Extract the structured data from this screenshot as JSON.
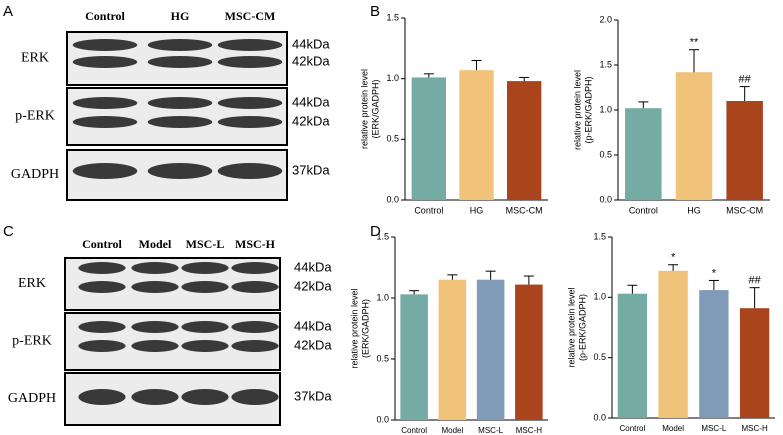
{
  "panel_labels": [
    "A",
    "B",
    "C",
    "D"
  ],
  "blots": [
    {
      "lanes": [
        "Control",
        "HG",
        "MSC-CM"
      ],
      "rows": [
        {
          "label": "ERK",
          "kda": [
            "44kDa",
            "42kDa"
          ]
        },
        {
          "label": "p-ERK",
          "kda": [
            "44kDa",
            "42kDa"
          ]
        },
        {
          "label": "GADPH",
          "kda": [
            "37kDa"
          ]
        }
      ]
    },
    {
      "lanes": [
        "Control",
        "Model",
        "MSC-L",
        "MSC-H"
      ],
      "rows": [
        {
          "label": "ERK",
          "kda": [
            "44kDa",
            "42kDa"
          ]
        },
        {
          "label": "p-ERK",
          "kda": [
            "44kDa",
            "42kDa"
          ]
        },
        {
          "label": "GADPH",
          "kda": [
            "37kDa"
          ]
        }
      ]
    }
  ],
  "chart_data": [
    {
      "type": "bar",
      "ylabel": [
        "relative protein level",
        "(ERK/GADPH)"
      ],
      "categories": [
        "Control",
        "HG",
        "MSC-CM"
      ],
      "values": [
        1.01,
        1.07,
        0.98
      ],
      "errors": [
        0.03,
        0.08,
        0.03
      ],
      "colors": [
        "#74aba5",
        "#f0c27a",
        "#a9441c"
      ],
      "annotations": [
        null,
        null,
        null
      ],
      "ylim": [
        0,
        1.5
      ],
      "yticks": [
        {
          "value": 0,
          "label": "0.0"
        },
        0.5,
        {
          "value": 1,
          "label": "1.0"
        },
        1.5
      ]
    },
    {
      "type": "bar",
      "ylabel": [
        "relative protein level",
        "(p-ERK/GADPH)"
      ],
      "categories": [
        "Control",
        "HG",
        "MSC-CM"
      ],
      "values": [
        1.02,
        1.42,
        1.1
      ],
      "errors": [
        0.07,
        0.25,
        0.16
      ],
      "colors": [
        "#74aba5",
        "#f0c27a",
        "#a9441c"
      ],
      "annotations": [
        null,
        "**",
        "##"
      ],
      "ylim": [
        0,
        2
      ],
      "yticks": [
        {
          "value": 0,
          "label": "0.0"
        },
        0.5,
        {
          "value": 1,
          "label": "1.0"
        },
        1.5,
        {
          "value": 2,
          "label": "2.0"
        }
      ]
    },
    {
      "type": "bar",
      "ylabel": [
        "relative protein level",
        "(ERK/GADPH)"
      ],
      "categories": [
        "Control",
        "Model",
        "MSC-L",
        "MSC-H"
      ],
      "values": [
        1.03,
        1.15,
        1.15,
        1.11
      ],
      "errors": [
        0.03,
        0.04,
        0.07,
        0.07
      ],
      "colors": [
        "#74aba5",
        "#f0c27a",
        "#7f9bb8",
        "#a9441c"
      ],
      "annotations": [
        null,
        null,
        null,
        null
      ],
      "ylim": [
        0,
        1.5
      ],
      "yticks": [
        {
          "value": 0,
          "label": "0.0"
        },
        0.5,
        {
          "value": 1,
          "label": "1.0"
        },
        1.5
      ]
    },
    {
      "type": "bar",
      "ylabel": [
        "relative protein level",
        "(p-ERK/GADPH)"
      ],
      "categories": [
        "Control",
        "Model",
        "MSC-L",
        "MSC-H"
      ],
      "values": [
        1.03,
        1.22,
        1.06,
        0.91
      ],
      "errors": [
        0.07,
        0.05,
        0.08,
        0.17
      ],
      "colors": [
        "#74aba5",
        "#f0c27a",
        "#7f9bb8",
        "#a9441c"
      ],
      "annotations": [
        null,
        "*",
        "*",
        "##"
      ],
      "ylim": [
        0,
        1.5
      ],
      "yticks": [
        {
          "value": 0,
          "label": "0.0"
        },
        0.5,
        {
          "value": 1,
          "label": "1.0"
        },
        1.5
      ]
    }
  ]
}
